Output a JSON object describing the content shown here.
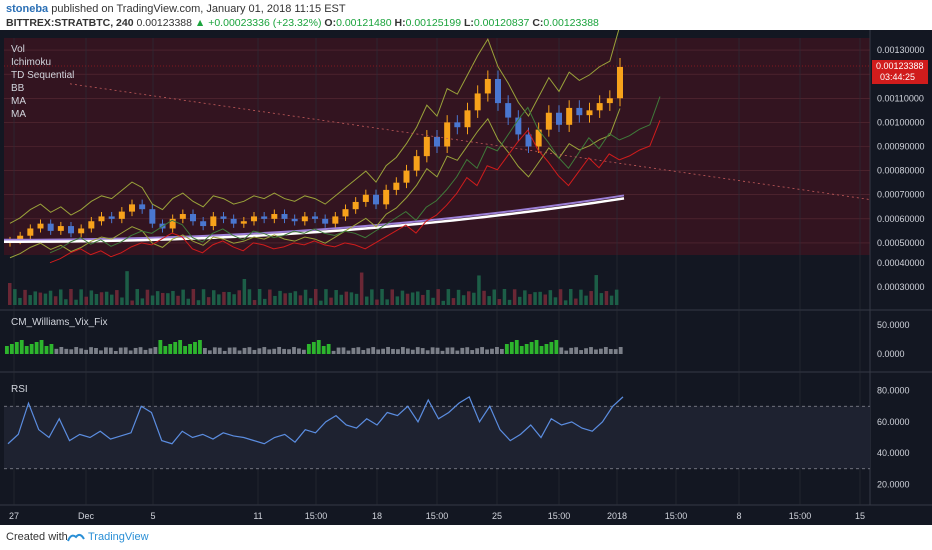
{
  "header": {
    "user": "stoneba",
    "published": " published on TradingView.com, January 01, 2018 11:15 EST",
    "symbol": "BITTREX:STRATBTC, 240",
    "last": "0.00123388",
    "change": "▲ +0.00023336 (+23.32%)",
    "o_label": "O:",
    "o": "0.00121480",
    "h_label": "H:",
    "h": "0.00125199",
    "l_label": "L:",
    "l": "0.00120837",
    "c_label": "C:",
    "c": "0.00123388"
  },
  "legend": [
    "Vol",
    "Ichimoku",
    "TD Sequential",
    "BB",
    "MA",
    "MA"
  ],
  "price_badge": {
    "value": "0.00123388",
    "time": "03:44:25"
  },
  "colors": {
    "bg": "#131722",
    "up": "#f7a21b",
    "down": "#4a77d0",
    "ma_white": "#ffffff",
    "ma_purple": "#9b7fd6",
    "red": "#d01c1c",
    "green": "#2db52d",
    "rsi": "#5b8de0"
  },
  "panels": {
    "vix_title": "CM_Williams_Vix_Fix",
    "rsi_title": "RSI"
  },
  "footer": {
    "created": "Created with",
    "brand": "TradingView"
  },
  "chart_data": [
    {
      "type": "candlestick",
      "title": "BITTREX:STRATBTC, 240",
      "ylim": [
        0.00045,
        0.00135
      ],
      "yticks": [
        "0.00130000",
        "0.00120000",
        "0.00110000",
        "0.00100000",
        "0.00090000",
        "0.00080000",
        "0.00070000",
        "0.00060000",
        "0.00050000"
      ],
      "xticks": [
        "27",
        "Dec",
        "5",
        "11",
        "15:00",
        "18",
        "15:00",
        "25",
        "15:00",
        "2018",
        "15:00",
        "8",
        "15:00",
        "15"
      ],
      "close": [
        0.00051,
        0.00053,
        0.00056,
        0.00058,
        0.00055,
        0.00057,
        0.00054,
        0.00056,
        0.00059,
        0.00061,
        0.0006,
        0.00063,
        0.00066,
        0.00064,
        0.00058,
        0.00056,
        0.0006,
        0.00062,
        0.00059,
        0.00057,
        0.00061,
        0.0006,
        0.00058,
        0.00059,
        0.00061,
        0.0006,
        0.00062,
        0.0006,
        0.00059,
        0.00061,
        0.0006,
        0.00058,
        0.00061,
        0.00064,
        0.00067,
        0.0007,
        0.00066,
        0.00072,
        0.00075,
        0.0008,
        0.00086,
        0.00094,
        0.0009,
        0.001,
        0.00098,
        0.00105,
        0.00112,
        0.00118,
        0.00108,
        0.00102,
        0.00095,
        0.0009,
        0.00097,
        0.00104,
        0.00099,
        0.00106,
        0.00103,
        0.00105,
        0.00108,
        0.0011,
        0.00123
      ]
    },
    {
      "type": "bar",
      "title": "Vol",
      "yticks": [
        "0.00040000",
        "0.00030000"
      ]
    },
    {
      "type": "bar",
      "title": "CM_Williams_Vix_Fix",
      "yticks": [
        "50.0000",
        "0.0000"
      ]
    },
    {
      "type": "line",
      "title": "RSI",
      "ylim": [
        10,
        90
      ],
      "yticks": [
        "80.0000",
        "60.0000",
        "40.0000",
        "20.0000"
      ],
      "values": [
        46,
        52,
        72,
        55,
        50,
        62,
        48,
        52,
        50,
        54,
        49,
        51,
        53,
        70,
        66,
        48,
        46,
        54,
        50,
        52,
        49,
        53,
        51,
        50,
        48,
        46,
        50,
        52,
        47,
        55,
        53,
        60,
        64,
        58,
        56,
        62,
        58,
        66,
        64,
        70,
        60,
        74,
        62,
        66,
        72,
        76,
        60,
        70,
        55,
        48,
        52,
        58,
        50,
        62,
        58,
        60,
        56,
        54,
        60,
        70,
        76
      ]
    }
  ]
}
